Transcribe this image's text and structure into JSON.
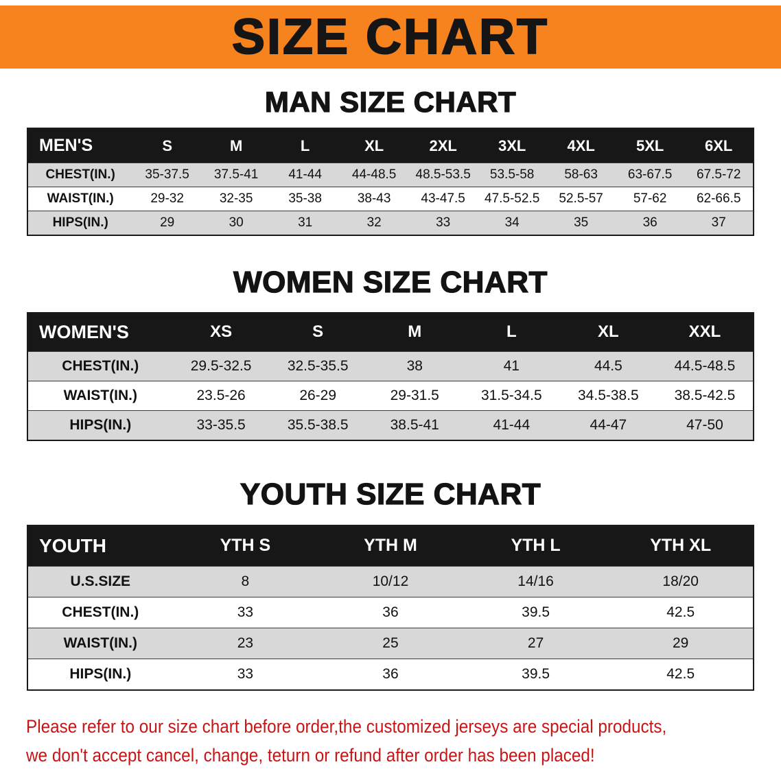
{
  "banner": {
    "title": "SIZE CHART"
  },
  "chart_data": [
    {
      "type": "table",
      "title": "MAN SIZE CHART",
      "header": [
        "MEN'S",
        "S",
        "M",
        "L",
        "XL",
        "2XL",
        "3XL",
        "4XL",
        "5XL",
        "6XL"
      ],
      "rows": [
        {
          "label": "CHEST(IN.)",
          "values": [
            "35-37.5",
            "37.5-41",
            "41-44",
            "44-48.5",
            "48.5-53.5",
            "53.5-58",
            "58-63",
            "63-67.5",
            "67.5-72"
          ]
        },
        {
          "label": "WAIST(IN.)",
          "values": [
            "29-32",
            "32-35",
            "35-38",
            "38-43",
            "43-47.5",
            "47.5-52.5",
            "52.5-57",
            "57-62",
            "62-66.5"
          ]
        },
        {
          "label": "HIPS(IN.)",
          "values": [
            "29",
            "30",
            "31",
            "32",
            "33",
            "34",
            "35",
            "36",
            "37"
          ]
        }
      ]
    },
    {
      "type": "table",
      "title": "WOMEN SIZE CHART",
      "header": [
        "WOMEN'S",
        "XS",
        "S",
        "M",
        "L",
        "XL",
        "XXL"
      ],
      "rows": [
        {
          "label": "CHEST(IN.)",
          "values": [
            "29.5-32.5",
            "32.5-35.5",
            "38",
            "41",
            "44.5",
            "44.5-48.5"
          ]
        },
        {
          "label": "WAIST(IN.)",
          "values": [
            "23.5-26",
            "26-29",
            "29-31.5",
            "31.5-34.5",
            "34.5-38.5",
            "38.5-42.5"
          ]
        },
        {
          "label": "HIPS(IN.)",
          "values": [
            "33-35.5",
            "35.5-38.5",
            "38.5-41",
            "41-44",
            "44-47",
            "47-50"
          ]
        }
      ]
    },
    {
      "type": "table",
      "title": "YOUTH SIZE CHART",
      "header": [
        "YOUTH",
        "YTH S",
        "YTH M",
        "YTH L",
        "YTH XL"
      ],
      "rows": [
        {
          "label": "U.S.SIZE",
          "values": [
            "8",
            "10/12",
            "14/16",
            "18/20"
          ]
        },
        {
          "label": "CHEST(IN.)",
          "values": [
            "33",
            "36",
            "39.5",
            "42.5"
          ]
        },
        {
          "label": "WAIST(IN.)",
          "values": [
            "23",
            "25",
            "27",
            "29"
          ]
        },
        {
          "label": "HIPS(IN.)",
          "values": [
            "33",
            "36",
            "39.5",
            "42.5"
          ]
        }
      ]
    }
  ],
  "notice": {
    "line1": "Please refer to our size chart before order,the customized jerseys are special products,",
    "line2": "we don't accept cancel, change, teturn or refund after order has been placed!"
  },
  "colors": {
    "banner_orange": "#f6831e",
    "header_black": "#171717",
    "row_gray": "#d8d8d8",
    "notice_red": "#c81414"
  }
}
